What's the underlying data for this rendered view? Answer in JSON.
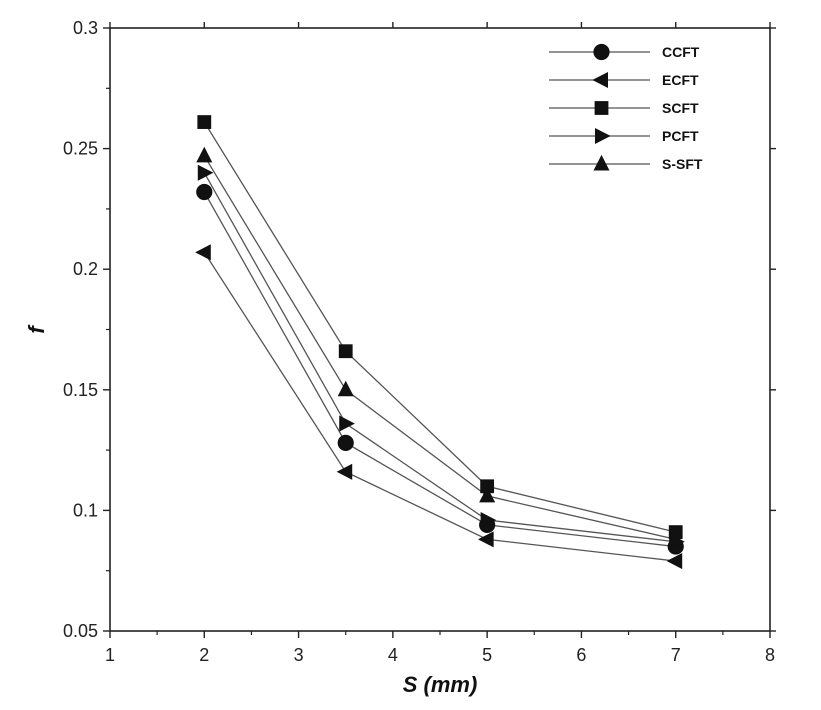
{
  "chart_data": {
    "type": "line",
    "title": "",
    "xlabel": "S (mm)",
    "ylabel": "f",
    "xlim": [
      1,
      8
    ],
    "ylim": [
      0.05,
      0.3
    ],
    "xticks": [
      "1",
      "2",
      "3",
      "4",
      "5",
      "6",
      "7",
      "8"
    ],
    "yticks": [
      "0.05",
      "0.1",
      "0.15",
      "0.2",
      "0.25",
      "0.3"
    ],
    "grid": false,
    "legend_position": "top-right",
    "x": [
      2,
      3.5,
      5,
      7
    ],
    "series": [
      {
        "name": "CCFT",
        "marker": "circle",
        "values": [
          0.232,
          0.128,
          0.094,
          0.085
        ]
      },
      {
        "name": "ECFT",
        "marker": "triangle-left",
        "values": [
          0.207,
          0.116,
          0.088,
          0.079
        ]
      },
      {
        "name": "SCFT",
        "marker": "square",
        "values": [
          0.261,
          0.166,
          0.11,
          0.091
        ]
      },
      {
        "name": "PCFT",
        "marker": "triangle-right",
        "values": [
          0.24,
          0.136,
          0.096,
          0.087
        ]
      },
      {
        "name": "S-SFT",
        "marker": "triangle-up",
        "values": [
          0.247,
          0.15,
          0.106,
          0.088
        ]
      }
    ],
    "colors": {
      "line": "#555555",
      "marker": "#111111",
      "axis": "#222222"
    }
  }
}
